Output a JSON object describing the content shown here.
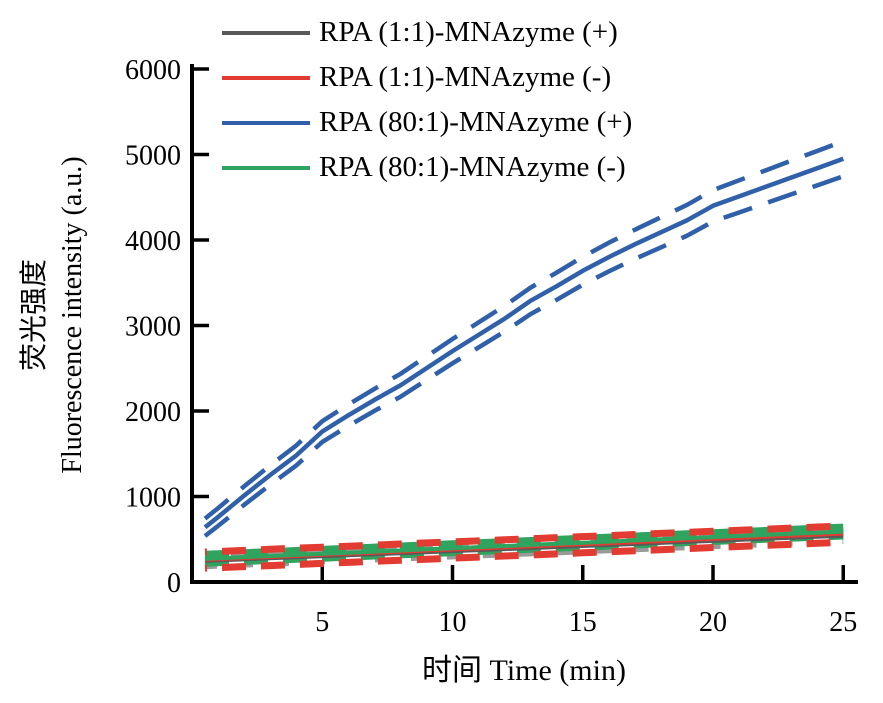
{
  "figure": {
    "background": "#ffffff",
    "axis_color": "#000000"
  },
  "chart_data": {
    "type": "line",
    "title": "",
    "xlabel": "时间 Time (min)",
    "ylabel_cn": "荧光强度",
    "ylabel_en": "Fluorescence intensity (a.u.)",
    "xlim": [
      0,
      25.5
    ],
    "ylim": [
      0,
      6000
    ],
    "xticks": [
      5,
      10,
      15,
      20,
      25
    ],
    "yticks": [
      0,
      1000,
      2000,
      3000,
      4000,
      5000,
      6000
    ],
    "grid": false,
    "legend_position": "upper-left",
    "x": [
      0.5,
      1,
      2,
      3,
      4,
      5,
      6,
      7,
      8,
      9,
      10,
      11,
      12,
      13,
      14,
      15,
      16,
      17,
      18,
      19,
      20,
      21,
      22,
      23,
      24,
      25
    ],
    "series": [
      {
        "name": "RPA (1:1)-MNAzyme (+)",
        "color": "#595959",
        "band_color": "#9a9a9a",
        "line_style": "solid mean with dashed error band",
        "values": [
          241,
          247,
          259,
          271,
          283,
          295,
          307,
          319,
          331,
          343,
          355,
          367,
          379,
          391,
          403,
          415,
          427,
          439,
          451,
          463,
          475,
          487,
          499,
          511,
          523,
          535
        ],
        "band": 65
      },
      {
        "name": "RPA (1:1)-MNAzyme (-)",
        "color": "#e23b32",
        "line_style": "solid mean with dashed error band",
        "values": [
          256,
          262,
          275,
          287,
          300,
          312,
          324,
          337,
          349,
          362,
          374,
          386,
          399,
          411,
          424,
          436,
          448,
          461,
          473,
          486,
          498,
          510,
          523,
          535,
          548,
          560
        ],
        "band": 95
      },
      {
        "name": "RPA (80:1)-MNAzyme (+)",
        "color": "#3060aa",
        "line_style": "solid mean with dashed error band",
        "values": [
          640,
          760,
          1010,
          1250,
          1480,
          1760,
          1950,
          2130,
          2300,
          2500,
          2700,
          2890,
          3080,
          3290,
          3460,
          3640,
          3800,
          3950,
          4090,
          4230,
          4400,
          4510,
          4620,
          4730,
          4840,
          4950
        ],
        "band": [
          102,
          104,
          108,
          113,
          117,
          121,
          125,
          129,
          134,
          138,
          142,
          146,
          150,
          155,
          159,
          163,
          167,
          171,
          176,
          180,
          184,
          188,
          192,
          197,
          201,
          205
        ]
      },
      {
        "name": "RPA (80:1)-MNAzyme (-)",
        "color": "#2ea45f",
        "line_style": "solid mean with dashed error band",
        "values": [
          272,
          278,
          291,
          304,
          317,
          330,
          343,
          356,
          369,
          382,
          395,
          408,
          421,
          434,
          447,
          460,
          473,
          486,
          499,
          512,
          525,
          538,
          551,
          564,
          577,
          590
        ],
        "band": 40
      }
    ]
  }
}
